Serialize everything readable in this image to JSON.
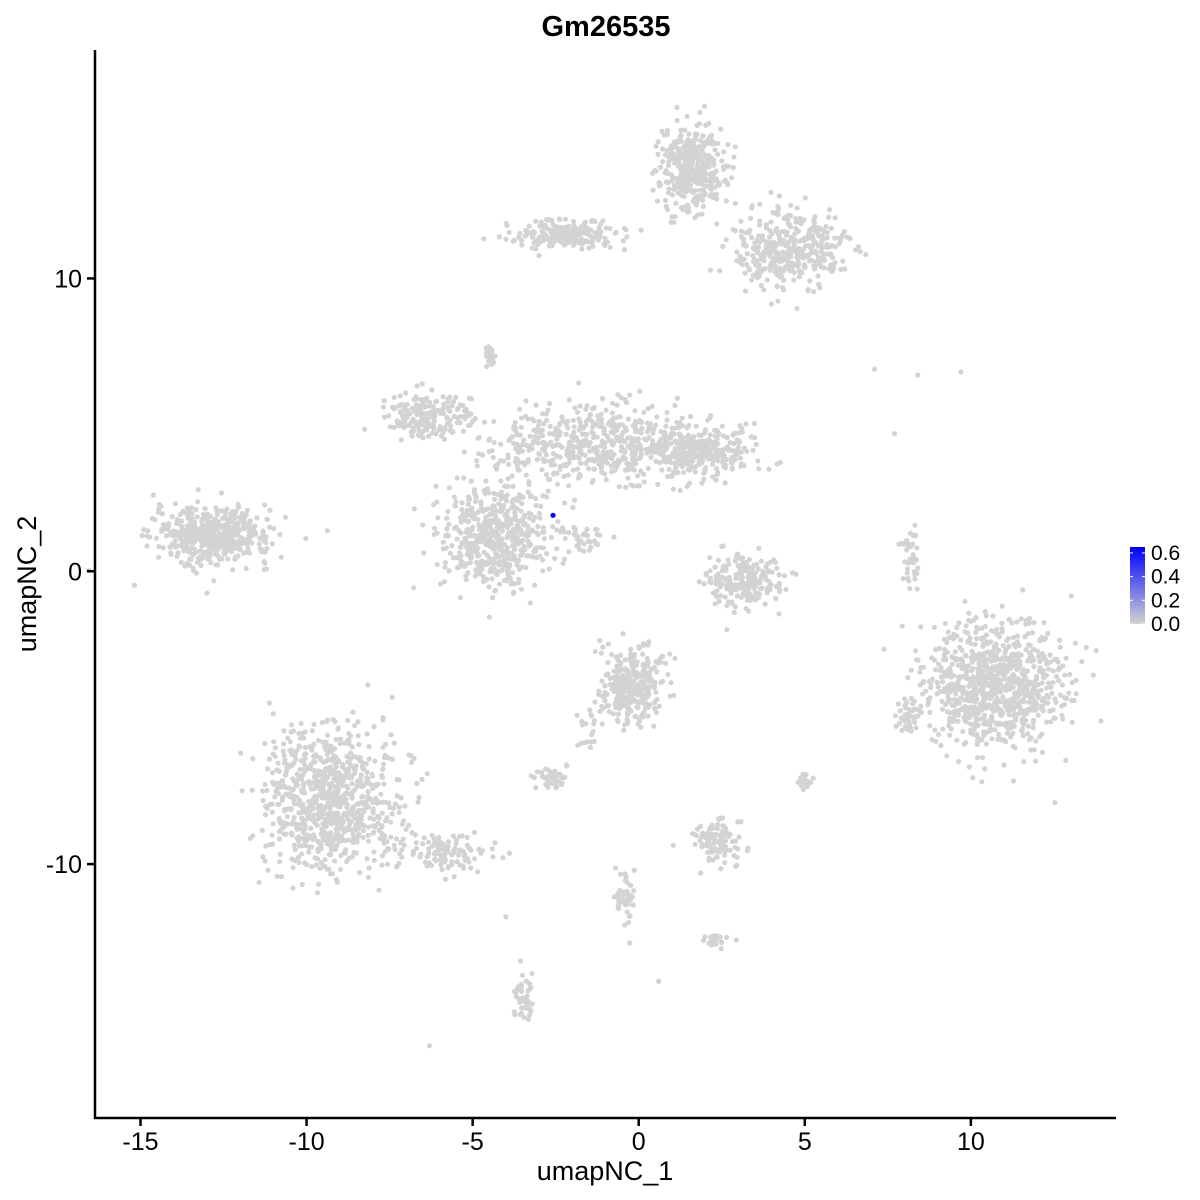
{
  "chart_data": {
    "type": "scatter",
    "title": "Gm26535",
    "xlabel": "umapNC_1",
    "ylabel": "umapNC_2",
    "xlim": [
      -16.37,
      14.37
    ],
    "ylim": [
      -18.67,
      17.8
    ],
    "xticks": [
      -15,
      -10,
      -5,
      0,
      5,
      10
    ],
    "yticks": [
      -10,
      0,
      10
    ],
    "grid": false,
    "point_color_low": "#d3d3d3",
    "point_color_high": "#0000ff",
    "legend": {
      "placement": "right",
      "type": "colorbar",
      "range": [
        0,
        0.65
      ],
      "ticks": [
        "0.0",
        "0.2",
        "0.4",
        "0.6"
      ]
    },
    "clusters": [
      {
        "center": [
          -12.8,
          1.2
        ],
        "spread": [
          1.1,
          0.6
        ],
        "n": 500,
        "value": 0
      },
      {
        "center": [
          1.6,
          13.8
        ],
        "spread": [
          0.6,
          0.9
        ],
        "n": 400,
        "value": 0
      },
      {
        "center": [
          4.5,
          11.0
        ],
        "spread": [
          1.0,
          0.8
        ],
        "n": 400,
        "value": 0
      },
      {
        "center": [
          -2.2,
          11.5
        ],
        "spread": [
          1.2,
          0.3
        ],
        "n": 200,
        "value": 0
      },
      {
        "center": [
          -1.0,
          4.3
        ],
        "spread": [
          2.2,
          0.8
        ],
        "n": 600,
        "value": 0
      },
      {
        "center": [
          -6.5,
          5.3
        ],
        "spread": [
          0.8,
          0.5
        ],
        "n": 200,
        "value": 0
      },
      {
        "center": [
          -4.4,
          1.1
        ],
        "spread": [
          1.0,
          1.1
        ],
        "n": 500,
        "value": 0
      },
      {
        "center": [
          1.8,
          4.1
        ],
        "spread": [
          0.9,
          0.5
        ],
        "n": 250,
        "value": 0
      },
      {
        "center": [
          -1.9,
          1.2
        ],
        "spread": [
          0.5,
          0.3
        ],
        "n": 40,
        "value": 0
      },
      {
        "center": [
          -4.5,
          7.4
        ],
        "spread": [
          0.1,
          0.2
        ],
        "n": 30,
        "value": 0
      },
      {
        "center": [
          3.2,
          -0.3
        ],
        "spread": [
          0.8,
          0.6
        ],
        "n": 200,
        "value": 0
      },
      {
        "center": [
          10.7,
          -3.9
        ],
        "spread": [
          1.3,
          1.3
        ],
        "n": 900,
        "value": 0
      },
      {
        "center": [
          8.1,
          -4.9
        ],
        "spread": [
          0.2,
          0.5
        ],
        "n": 40,
        "value": 0
      },
      {
        "center": [
          8.2,
          0.3
        ],
        "spread": [
          0.2,
          0.6
        ],
        "n": 40,
        "value": 0
      },
      {
        "center": [
          -9.3,
          -7.8
        ],
        "spread": [
          1.2,
          1.5
        ],
        "n": 800,
        "value": 0
      },
      {
        "center": [
          -5.8,
          -9.6
        ],
        "spread": [
          1.0,
          0.4
        ],
        "n": 120,
        "value": 0
      },
      {
        "center": [
          -0.2,
          -3.9
        ],
        "spread": [
          0.6,
          0.8
        ],
        "n": 300,
        "value": 0
      },
      {
        "center": [
          -2.6,
          -7.0
        ],
        "spread": [
          0.3,
          0.2
        ],
        "n": 50,
        "value": 0
      },
      {
        "center": [
          2.4,
          -9.2
        ],
        "spread": [
          0.4,
          0.5
        ],
        "n": 100,
        "value": 0
      },
      {
        "center": [
          -3.5,
          -14.5
        ],
        "spread": [
          0.2,
          0.6
        ],
        "n": 40,
        "value": 0
      },
      {
        "center": [
          -0.4,
          -11.2
        ],
        "spread": [
          0.2,
          0.6
        ],
        "n": 40,
        "value": 0
      },
      {
        "center": [
          2.2,
          -12.6
        ],
        "spread": [
          0.3,
          0.15
        ],
        "n": 20,
        "value": 0
      },
      {
        "center": [
          5.0,
          -7.2
        ],
        "spread": [
          0.15,
          0.15
        ],
        "n": 20,
        "value": 0
      },
      {
        "center": [
          -1.5,
          -5.3
        ],
        "spread": [
          0.3,
          0.6
        ],
        "n": 20,
        "value": 0
      }
    ],
    "points": [
      {
        "x": 7.1,
        "y": 6.9,
        "value": 0
      },
      {
        "x": 8.4,
        "y": 6.7,
        "value": 0
      },
      {
        "x": 9.7,
        "y": 6.8,
        "value": 0
      },
      {
        "x": 7.7,
        "y": 4.7,
        "value": 0
      },
      {
        "x": -6.3,
        "y": -16.2,
        "value": 0
      },
      {
        "x": -4.0,
        "y": -11.8,
        "value": 0
      },
      {
        "x": 0.6,
        "y": -14.0,
        "value": 0
      },
      {
        "x": -2.58,
        "y": 1.91,
        "value": 0.65
      }
    ]
  }
}
